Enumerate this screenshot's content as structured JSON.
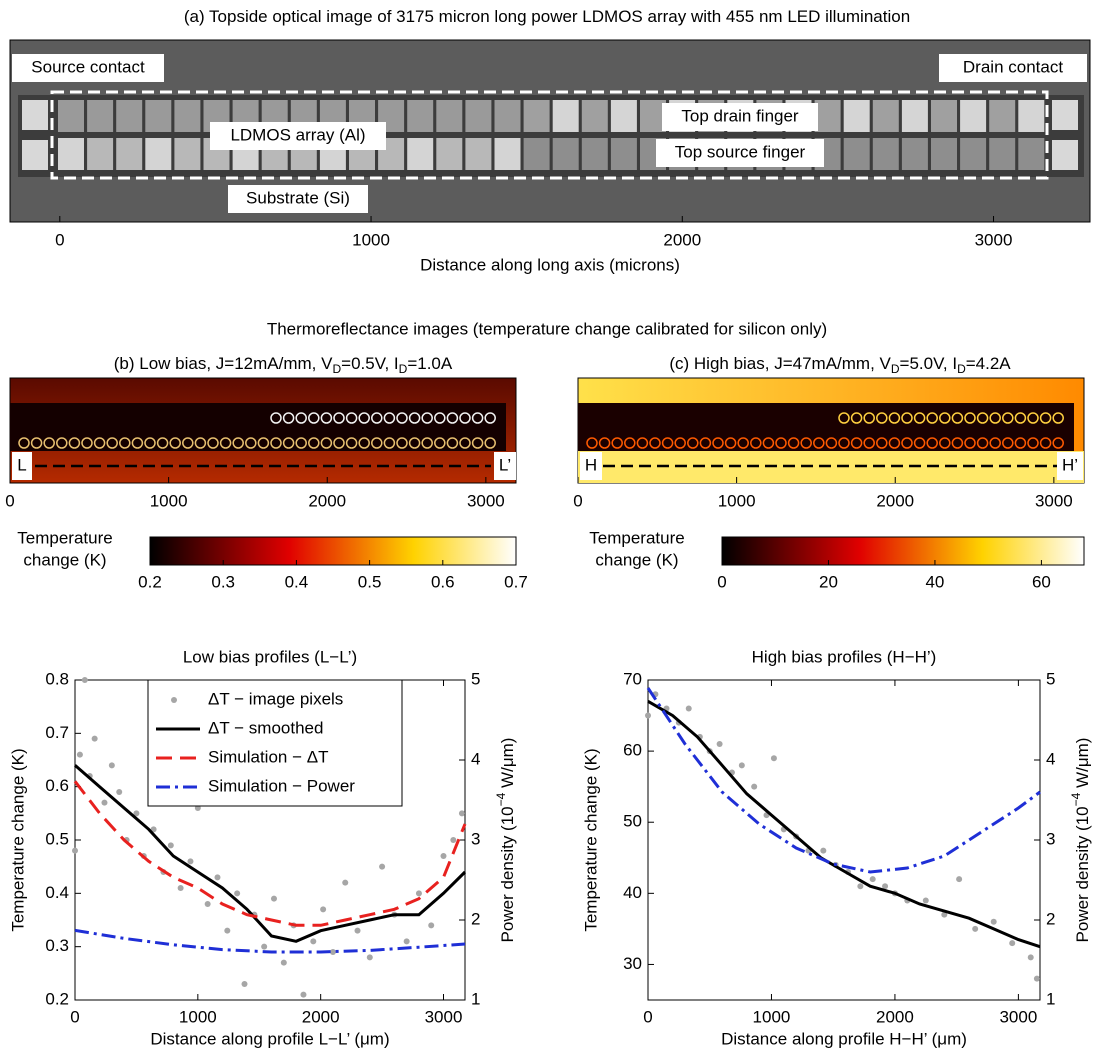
{
  "figure_title": "Thermoreflectance images (temperature change calibrated for silicon only)",
  "chart_data": [
    {
      "type": "image",
      "title": [
        "(a) Topside optical image of 3175 micron long power LDMOS array with 455 nm LED illumination"
      ],
      "xlabel": "Distance along long axis (microns)",
      "xlim": [
        -160,
        3310
      ],
      "xticks": [
        0,
        1000,
        2000,
        3000
      ],
      "annotations": [
        "Source contact",
        "Drain contact",
        "LDMOS array (Al)",
        "Top drain finger",
        "Top source finger",
        "Substrate (Si)"
      ]
    },
    {
      "type": "image",
      "title": [
        "(b) Low bias, J=12mA/mm, V",
        "D",
        "=0.5V, I",
        "D",
        "=1.0A"
      ],
      "xlim": [
        0,
        3190
      ],
      "xticks": [
        0,
        1000,
        2000,
        3000
      ],
      "annotations": [
        "L",
        "L’"
      ],
      "colorbar_label": [
        "Temperature",
        "change (K)"
      ],
      "colormap": "hot",
      "clim": [
        0.2,
        0.7
      ],
      "cticks": [
        0.2,
        0.3,
        0.4,
        0.5,
        0.6,
        0.7
      ]
    },
    {
      "type": "image",
      "title": [
        "(c) High bias, J=47mA/mm, V",
        "D",
        "=5.0V, I",
        "D",
        "=4.2A"
      ],
      "xlim": [
        0,
        3190
      ],
      "xticks": [
        0,
        1000,
        2000,
        3000
      ],
      "annotations": [
        "H",
        "H’"
      ],
      "colorbar_label": [
        "Temperature",
        "change (K)"
      ],
      "colormap": "hot",
      "clim": [
        0,
        68
      ],
      "cticks": [
        0,
        20,
        40,
        60
      ]
    },
    {
      "type": "line",
      "title": "Low bias profiles (L−L’)",
      "xlabel": "Distance along profile L−L’ (μm)",
      "ylabel": "Temperature change (K)",
      "y2label": [
        "Power density (10",
        "−4",
        " W/μm)"
      ],
      "xlim": [
        0,
        3175
      ],
      "xticks": [
        0,
        1000,
        2000,
        3000
      ],
      "ylim": [
        0.2,
        0.8
      ],
      "yticks": [
        0.2,
        0.3,
        0.4,
        0.5,
        0.6,
        0.7,
        0.8
      ],
      "y2lim": [
        1,
        5
      ],
      "y2ticks": [
        1,
        2,
        3,
        4,
        5
      ],
      "legend": "upper center",
      "series": [
        {
          "name": "ΔT − image pixels",
          "style": "dots",
          "color": "#a6a6a6",
          "x": [
            0,
            40,
            80,
            120,
            160,
            240,
            300,
            360,
            420,
            500,
            560,
            640,
            720,
            780,
            860,
            940,
            1000,
            1080,
            1160,
            1240,
            1320,
            1380,
            1460,
            1540,
            1620,
            1700,
            1780,
            1860,
            1940,
            2020,
            2100,
            2200,
            2300,
            2400,
            2500,
            2600,
            2700,
            2800,
            2900,
            3000,
            3080,
            3150
          ],
          "values": [
            0.48,
            0.66,
            0.8,
            0.62,
            0.69,
            0.57,
            0.64,
            0.59,
            0.5,
            0.55,
            0.47,
            0.52,
            0.44,
            0.49,
            0.41,
            0.46,
            0.56,
            0.38,
            0.43,
            0.33,
            0.4,
            0.23,
            0.36,
            0.3,
            0.39,
            0.27,
            0.34,
            0.21,
            0.31,
            0.37,
            0.29,
            0.42,
            0.33,
            0.28,
            0.45,
            0.36,
            0.31,
            0.4,
            0.34,
            0.47,
            0.5,
            0.55
          ]
        },
        {
          "name": "ΔT − smoothed",
          "style": "solid",
          "color": "#000000",
          "x": [
            0,
            200,
            400,
            600,
            800,
            1000,
            1200,
            1400,
            1600,
            1800,
            2000,
            2200,
            2400,
            2600,
            2800,
            3000,
            3175
          ],
          "values": [
            0.64,
            0.6,
            0.56,
            0.52,
            0.47,
            0.44,
            0.41,
            0.37,
            0.32,
            0.31,
            0.33,
            0.34,
            0.35,
            0.36,
            0.36,
            0.4,
            0.44
          ]
        },
        {
          "name": "Simulation − ΔT",
          "style": "dashed",
          "color": "#e8211f",
          "x": [
            0,
            200,
            400,
            600,
            800,
            1000,
            1200,
            1400,
            1600,
            1800,
            2000,
            2200,
            2400,
            2600,
            2800,
            3000,
            3175
          ],
          "values": [
            0.61,
            0.55,
            0.5,
            0.46,
            0.43,
            0.41,
            0.38,
            0.36,
            0.35,
            0.34,
            0.34,
            0.35,
            0.36,
            0.37,
            0.39,
            0.43,
            0.53
          ]
        },
        {
          "name": "Simulation − Power",
          "style": "dashdot",
          "color": "#1f2fd6",
          "axis": "y2",
          "x": [
            0,
            400,
            800,
            1200,
            1600,
            2000,
            2400,
            2800,
            3175
          ],
          "values": [
            1.87,
            1.77,
            1.69,
            1.63,
            1.6,
            1.6,
            1.62,
            1.66,
            1.7
          ]
        }
      ]
    },
    {
      "type": "line",
      "title": "High bias profiles (H−H’)",
      "xlabel": "Distance along profile H−H’ (μm)",
      "ylabel": "Temperature change (K)",
      "y2label": [
        "Power density (10",
        "−4",
        " W/μm)"
      ],
      "xlim": [
        0,
        3175
      ],
      "xticks": [
        0,
        1000,
        2000,
        3000
      ],
      "ylim": [
        25,
        70
      ],
      "yticks": [
        30,
        40,
        50,
        60,
        70
      ],
      "y2lim": [
        1,
        5
      ],
      "y2ticks": [
        1,
        2,
        3,
        4,
        5
      ],
      "series": [
        {
          "style": "dots",
          "color": "#a6a6a6",
          "x": [
            0,
            60,
            150,
            250,
            330,
            420,
            500,
            580,
            680,
            760,
            860,
            960,
            1020,
            1100,
            1200,
            1300,
            1420,
            1520,
            1620,
            1720,
            1820,
            1920,
            2000,
            2100,
            2250,
            2400,
            2520,
            2650,
            2800,
            2950,
            3100,
            3150
          ],
          "values": [
            65,
            68,
            66,
            64,
            66,
            62,
            60,
            61,
            57,
            58,
            55,
            51,
            59,
            49,
            48,
            46,
            46,
            44,
            43,
            41,
            42,
            41,
            40,
            39,
            39,
            37,
            42,
            35,
            36,
            33,
            31,
            28
          ]
        },
        {
          "style": "solid",
          "color": "#000000",
          "x": [
            0,
            200,
            400,
            600,
            800,
            1000,
            1200,
            1400,
            1600,
            1800,
            2000,
            2200,
            2400,
            2600,
            2800,
            3000,
            3175
          ],
          "values": [
            67,
            65,
            62,
            58,
            54,
            51,
            48,
            45,
            43,
            41,
            40,
            38.5,
            37.5,
            36.5,
            35,
            33.5,
            32.5
          ]
        },
        {
          "style": "dashdot",
          "color": "#1f2fd6",
          "axis": "y2",
          "x": [
            0,
            300,
            600,
            900,
            1200,
            1500,
            1800,
            2100,
            2400,
            2700,
            3000,
            3175
          ],
          "values": [
            4.9,
            4.2,
            3.6,
            3.2,
            2.9,
            2.7,
            2.6,
            2.65,
            2.8,
            3.1,
            3.4,
            3.6
          ]
        }
      ]
    }
  ]
}
